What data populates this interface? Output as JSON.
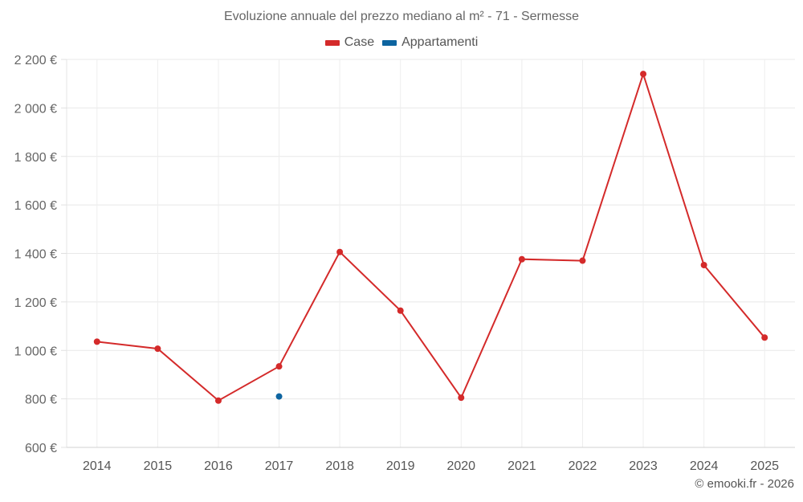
{
  "title": "Evoluzione annuale del prezzo mediano al m² - 71 - Sermesse",
  "legend": [
    {
      "label": "Case",
      "color": "#d42a2a"
    },
    {
      "label": "Appartamenti",
      "color": "#0d64a0"
    }
  ],
  "credit": "© emooki.fr - 2026",
  "chart_data": {
    "type": "line",
    "title": "Evoluzione annuale del prezzo mediano al m² - 71 - Sermesse",
    "xlabel": "",
    "ylabel": "",
    "categories": [
      "2014",
      "2015",
      "2016",
      "2017",
      "2018",
      "2019",
      "2020",
      "2021",
      "2022",
      "2023",
      "2024",
      "2025"
    ],
    "series": [
      {
        "name": "Case",
        "color": "#d42a2a",
        "values": [
          1036,
          1007,
          793,
          934,
          1406,
          1164,
          805,
          1376,
          1370,
          2140,
          1352,
          1053
        ]
      },
      {
        "name": "Appartamenti",
        "color": "#0d64a0",
        "values": [
          null,
          null,
          null,
          810,
          null,
          null,
          null,
          null,
          null,
          null,
          null,
          null
        ]
      }
    ],
    "yticks": [
      600,
      800,
      1000,
      1200,
      1400,
      1600,
      1800,
      2000,
      2200
    ],
    "ytick_labels": [
      "600 €",
      "800 €",
      "1 000 €",
      "1 200 €",
      "1 400 €",
      "1 600 €",
      "1 800 €",
      "2 000 €",
      "2 200 €"
    ],
    "ylim": [
      600,
      2200
    ],
    "grid": true,
    "legend_position": "top"
  }
}
